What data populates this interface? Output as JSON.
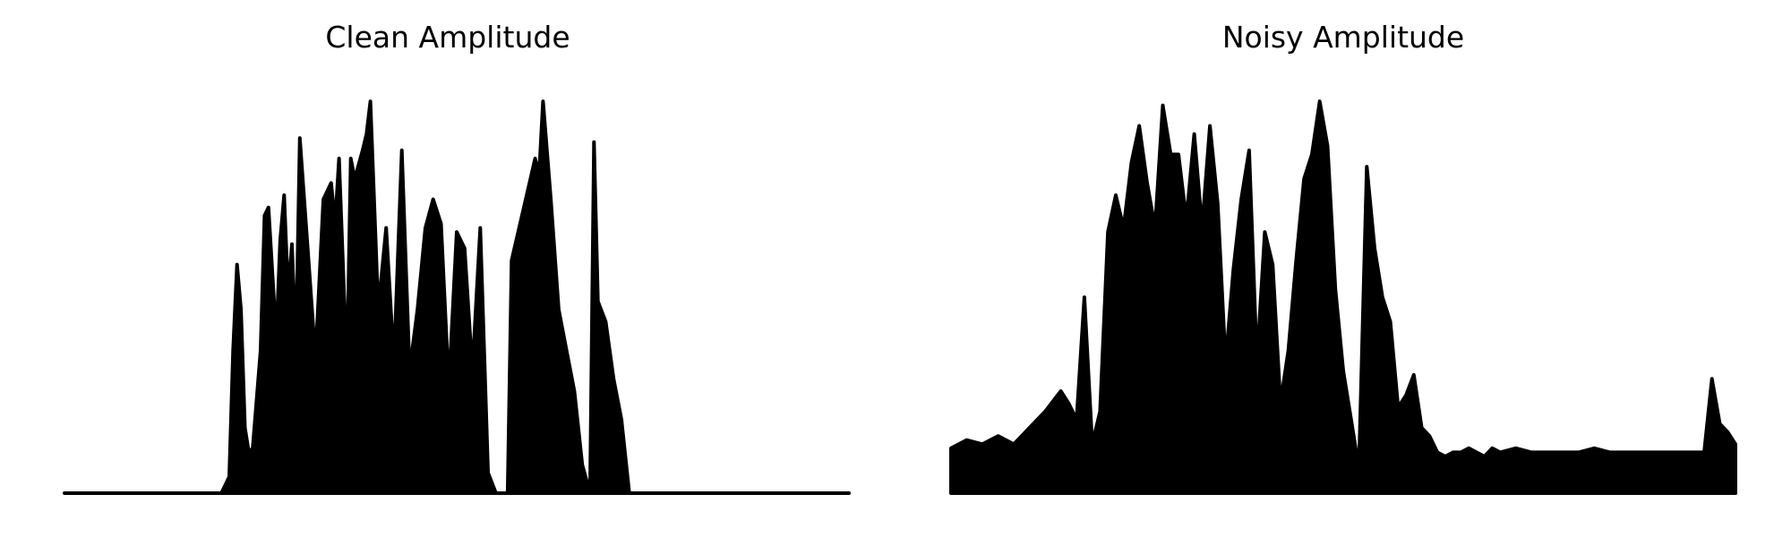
{
  "chart_data": [
    {
      "type": "area",
      "title": "Clean Amplitude",
      "ylim": [
        0,
        1.0
      ],
      "grid": false,
      "axes": "off",
      "color": "#000000",
      "series": [
        {
          "x": [
            0,
            0.17,
            0.2,
            0.21,
            0.215,
            0.22,
            0.225,
            0.23,
            0.235,
            0.24,
            0.25,
            0.255,
            0.26,
            0.27,
            0.275,
            0.28,
            0.285,
            0.29,
            0.295,
            0.3,
            0.31,
            0.32,
            0.33,
            0.34,
            0.345,
            0.35,
            0.36,
            0.365,
            0.37,
            0.38,
            0.385,
            0.39,
            0.4,
            0.41,
            0.42,
            0.43,
            0.44,
            0.45,
            0.46,
            0.47,
            0.48,
            0.49,
            0.5,
            0.51,
            0.52,
            0.53,
            0.54,
            0.55,
            0.555,
            0.565,
            0.57,
            0.6,
            0.605,
            0.61,
            0.62,
            0.63,
            0.64,
            0.65,
            0.66,
            0.67,
            0.675,
            0.68,
            0.69,
            0.7,
            0.71,
            0.72,
            0.73,
            0.74,
            0.75,
            0.76,
            0.77,
            0.78,
            0.79,
            1.0
          ],
          "y": [
            0.0,
            0.0,
            0.0,
            0.04,
            0.35,
            0.56,
            0.45,
            0.16,
            0.1,
            0.11,
            0.35,
            0.68,
            0.7,
            0.38,
            0.62,
            0.73,
            0.49,
            0.61,
            0.35,
            0.87,
            0.6,
            0.33,
            0.72,
            0.76,
            0.66,
            0.82,
            0.3,
            0.82,
            0.77,
            0.84,
            0.88,
            0.96,
            0.45,
            0.65,
            0.32,
            0.84,
            0.3,
            0.45,
            0.65,
            0.72,
            0.66,
            0.26,
            0.64,
            0.6,
            0.3,
            0.65,
            0.05,
            0.0,
            0.0,
            0.0,
            0.57,
            0.82,
            0.78,
            0.96,
            0.72,
            0.45,
            0.35,
            0.25,
            0.07,
            0.0,
            0.86,
            0.47,
            0.42,
            0.28,
            0.18,
            0.0,
            0.0,
            0.0,
            0.0,
            0.0,
            0.0,
            0.0,
            0.0,
            0.0
          ]
        }
      ]
    },
    {
      "type": "area",
      "title": "Noisy Amplitude",
      "ylim": [
        0,
        1.0
      ],
      "grid": false,
      "axes": "off",
      "color": "#000000",
      "series": [
        {
          "x": [
            0,
            0.02,
            0.04,
            0.06,
            0.08,
            0.1,
            0.12,
            0.14,
            0.15,
            0.16,
            0.17,
            0.18,
            0.19,
            0.2,
            0.21,
            0.22,
            0.23,
            0.24,
            0.25,
            0.26,
            0.27,
            0.28,
            0.29,
            0.3,
            0.31,
            0.32,
            0.33,
            0.34,
            0.35,
            0.36,
            0.37,
            0.38,
            0.39,
            0.4,
            0.41,
            0.42,
            0.43,
            0.44,
            0.45,
            0.46,
            0.47,
            0.48,
            0.49,
            0.5,
            0.51,
            0.52,
            0.53,
            0.54,
            0.55,
            0.56,
            0.57,
            0.58,
            0.59,
            0.6,
            0.61,
            0.62,
            0.63,
            0.64,
            0.65,
            0.66,
            0.67,
            0.68,
            0.69,
            0.7,
            0.72,
            0.74,
            0.76,
            0.78,
            0.8,
            0.82,
            0.84,
            0.86,
            0.88,
            0.9,
            0.92,
            0.94,
            0.96,
            0.97,
            0.98,
            0.99,
            1.0
          ],
          "y": [
            0.11,
            0.13,
            0.12,
            0.14,
            0.12,
            0.16,
            0.2,
            0.25,
            0.22,
            0.18,
            0.48,
            0.12,
            0.2,
            0.64,
            0.73,
            0.65,
            0.81,
            0.9,
            0.76,
            0.65,
            0.95,
            0.83,
            0.83,
            0.67,
            0.88,
            0.65,
            0.9,
            0.71,
            0.32,
            0.55,
            0.72,
            0.84,
            0.32,
            0.64,
            0.56,
            0.22,
            0.35,
            0.57,
            0.77,
            0.83,
            0.96,
            0.85,
            0.5,
            0.3,
            0.18,
            0.06,
            0.8,
            0.6,
            0.48,
            0.42,
            0.21,
            0.24,
            0.29,
            0.16,
            0.14,
            0.1,
            0.09,
            0.1,
            0.1,
            0.11,
            0.1,
            0.09,
            0.11,
            0.1,
            0.11,
            0.1,
            0.1,
            0.1,
            0.1,
            0.11,
            0.1,
            0.1,
            0.1,
            0.1,
            0.1,
            0.1,
            0.1,
            0.28,
            0.17,
            0.15,
            0.12
          ]
        }
      ]
    }
  ]
}
